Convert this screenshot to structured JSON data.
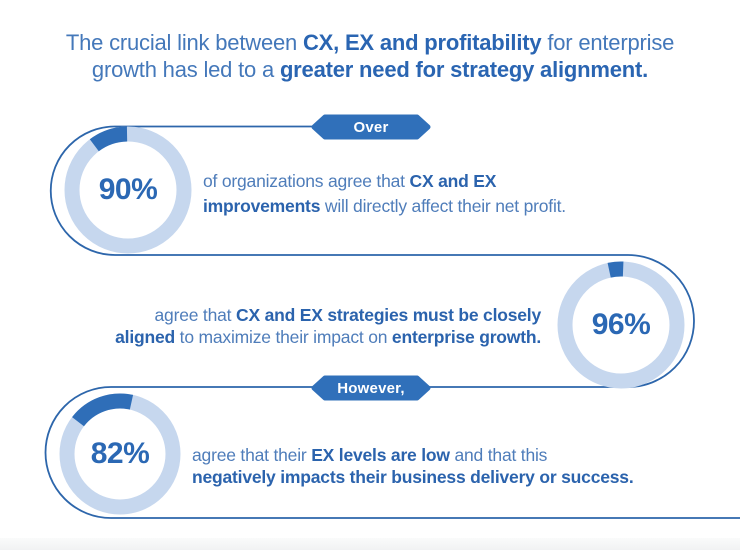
{
  "colors": {
    "badge_blue": "#3070ba",
    "segment_blue": "#2f6eb8",
    "ring_light": "#c6d7ee",
    "line_blue": "#2d66ab",
    "text_regular": "#4f7dba",
    "text_bold": "#2b63ad",
    "percent_text": "#2b68b4",
    "background": "#ffffff"
  },
  "title": {
    "line1": [
      {
        "t": "The crucial link between ",
        "b": false
      },
      {
        "t": "CX, EX and profitability",
        "b": true
      },
      {
        "t": " for enterprise",
        "b": false
      }
    ],
    "line2": [
      {
        "t": "growth has led to a ",
        "b": false
      },
      {
        "t": "greater need for strategy alignment.",
        "b": true
      }
    ]
  },
  "badges": [
    {
      "label": "Over"
    },
    {
      "label": "However,"
    }
  ],
  "sections": [
    {
      "line1": [
        {
          "t": "of organizations agree that ",
          "b": false
        },
        {
          "t": "CX and EX",
          "b": true
        }
      ],
      "line2": [
        {
          "t": "improvements",
          "b": true
        },
        {
          "t": " will directly affect their net profit.",
          "b": false
        }
      ]
    },
    {
      "line1": [
        {
          "t": "agree that ",
          "b": false
        },
        {
          "t": "CX and EX strategies must be closely",
          "b": true
        }
      ],
      "line2": [
        {
          "t": "aligned",
          "b": true
        },
        {
          "t": " to maximize their impact on ",
          "b": false
        },
        {
          "t": "enterprise growth.",
          "b": true
        }
      ]
    },
    {
      "line1": [
        {
          "t": "agree that their ",
          "b": false
        },
        {
          "t": "EX levels are low",
          "b": true
        },
        {
          "t": " and that this",
          "b": false
        }
      ],
      "line2": [
        {
          "t": "negatively impacts their business delivery or success.",
          "b": true
        }
      ]
    }
  ],
  "chart_data": [
    {
      "type": "pie",
      "title": "Over",
      "center_label": "90%",
      "values": [
        90,
        10
      ],
      "categories": [
        "value",
        "remainder"
      ],
      "colors": [
        "#c6d7ee",
        "#2f6eb8"
      ],
      "legend": "none"
    },
    {
      "type": "pie",
      "title": "",
      "center_label": "96%",
      "values": [
        96,
        4
      ],
      "categories": [
        "value",
        "remainder"
      ],
      "colors": [
        "#c6d7ee",
        "#2f6eb8"
      ],
      "legend": "none"
    },
    {
      "type": "pie",
      "title": "However,",
      "center_label": "82%",
      "values": [
        82,
        18
      ],
      "categories": [
        "value",
        "remainder"
      ],
      "colors": [
        "#c6d7ee",
        "#2f6eb8"
      ],
      "legend": "none"
    }
  ]
}
